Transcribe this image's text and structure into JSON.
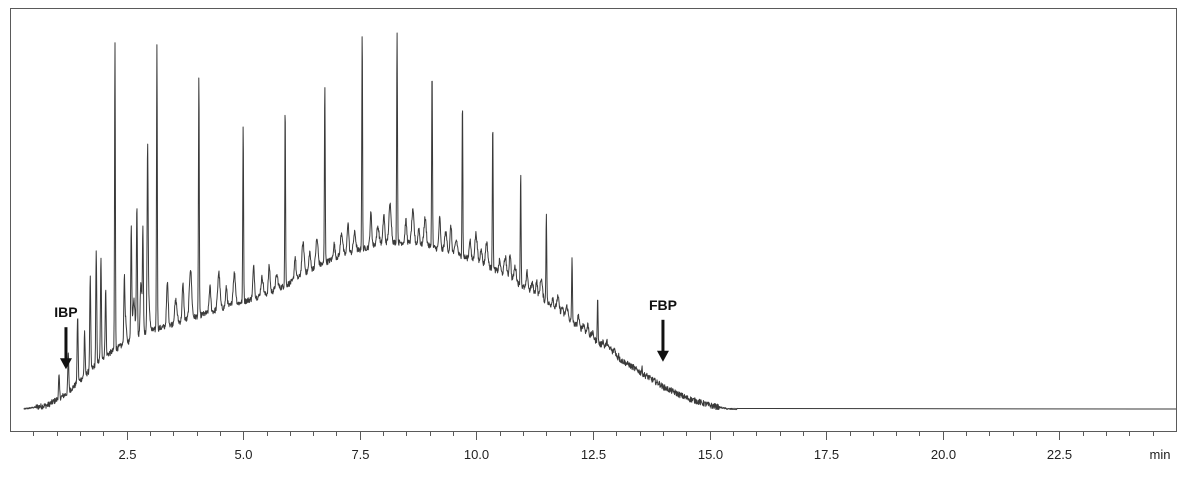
{
  "chart_data": {
    "type": "line",
    "title": "",
    "xlabel": "",
    "ylabel": "",
    "x_unit_label": "min",
    "xlim": [
      0.0,
      25.0
    ],
    "ylim": [
      0,
      100
    ],
    "x_ticks": [
      2.5,
      5.0,
      7.5,
      10.0,
      12.5,
      15.0,
      17.5,
      20.0,
      22.5
    ],
    "x_tick_labels": [
      "2.5",
      "5.0",
      "7.5",
      "10.0",
      "12.5",
      "15.0",
      "17.5",
      "20.0",
      "22.5"
    ],
    "minor_tick_step": 0.5,
    "grid": false,
    "legend": "none",
    "line_color": "#3a3a3a",
    "baseline": [
      [
        0.3,
        0
      ],
      [
        0.8,
        1
      ],
      [
        1.2,
        4
      ],
      [
        1.6,
        9
      ],
      [
        2.0,
        14
      ],
      [
        2.5,
        18
      ],
      [
        3.0,
        21
      ],
      [
        3.5,
        23
      ],
      [
        4.0,
        25
      ],
      [
        4.5,
        27
      ],
      [
        5.0,
        29
      ],
      [
        5.5,
        31
      ],
      [
        6.0,
        34
      ],
      [
        6.5,
        38
      ],
      [
        7.0,
        41
      ],
      [
        7.5,
        43
      ],
      [
        8.0,
        45
      ],
      [
        8.5,
        45
      ],
      [
        9.0,
        44
      ],
      [
        9.5,
        42
      ],
      [
        10.0,
        40
      ],
      [
        10.5,
        37
      ],
      [
        11.0,
        33
      ],
      [
        11.5,
        29
      ],
      [
        12.0,
        24
      ],
      [
        12.5,
        19
      ],
      [
        13.0,
        14
      ],
      [
        13.5,
        10
      ],
      [
        14.0,
        6
      ],
      [
        14.5,
        3
      ],
      [
        15.0,
        1
      ],
      [
        15.4,
        0
      ],
      [
        25.0,
        0
      ]
    ],
    "major_peaks": [
      {
        "x": 2.25,
        "y": 99
      },
      {
        "x": 3.15,
        "y": 98
      },
      {
        "x": 4.05,
        "y": 91
      },
      {
        "x": 5.0,
        "y": 77
      },
      {
        "x": 5.9,
        "y": 82
      },
      {
        "x": 6.75,
        "y": 88
      },
      {
        "x": 7.55,
        "y": 102
      },
      {
        "x": 8.3,
        "y": 102
      },
      {
        "x": 9.05,
        "y": 92
      },
      {
        "x": 9.7,
        "y": 83
      },
      {
        "x": 10.35,
        "y": 77
      },
      {
        "x": 10.95,
        "y": 64
      },
      {
        "x": 11.5,
        "y": 53
      },
      {
        "x": 12.05,
        "y": 41
      },
      {
        "x": 12.6,
        "y": 30
      },
      {
        "x": 13.05,
        "y": 15
      },
      {
        "x": 13.55,
        "y": 11
      },
      {
        "x": 14.0,
        "y": 6
      }
    ],
    "annotations": [
      {
        "label": "IBP",
        "x": 1.2,
        "arrow": "down"
      },
      {
        "label": "FBP",
        "x": 14.0,
        "arrow": "down"
      }
    ]
  }
}
